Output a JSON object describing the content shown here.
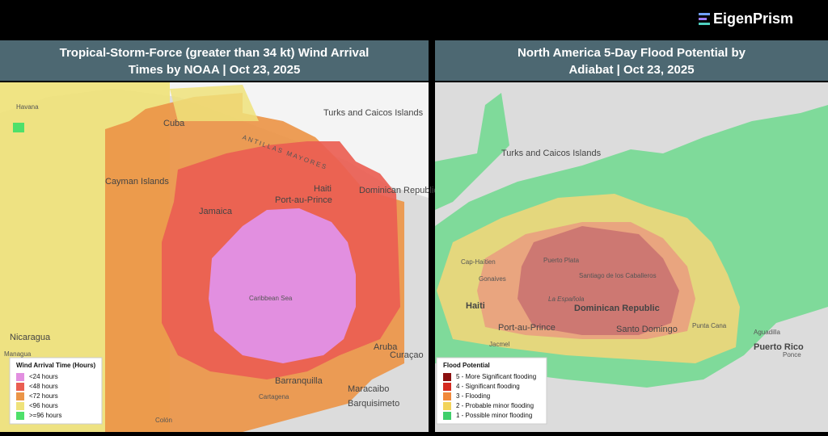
{
  "header": {
    "brand": "EigenPrism"
  },
  "panels": [
    {
      "title_lines": [
        "Tropical-Storm-Force (greater than 34 kt) Wind Arrival",
        "Times by NOAA | Oct 23, 2025"
      ],
      "legend": {
        "title": "Wind Arrival Time (Hours)",
        "items": [
          {
            "label": "<24 hours",
            "color": "#e28fe0"
          },
          {
            "label": "<48 hours",
            "color": "#ea5e52"
          },
          {
            "label": "<72 hours",
            "color": "#eb9548"
          },
          {
            "label": "<96 hours",
            "color": "#efe27a"
          },
          {
            "label": ">=96 hours",
            "color": "#4ee06a"
          }
        ]
      },
      "places": [
        "Havana",
        "Cuba",
        "Cayman Islands",
        "Jamaica",
        "Haiti",
        "Port-au-Prince",
        "Dominican Republic",
        "Turks and Caicos Islands",
        "Caribbean Sea",
        "Nicaragua",
        "Managua",
        "Aruba",
        "Curaçao",
        "Barranquilla",
        "Maracaibo",
        "Barquisimeto",
        "Cartagena",
        "Colón",
        "ANTILLAS MAYORES"
      ]
    },
    {
      "title_lines": [
        "North America 5-Day Flood Potential by",
        "Adiabat | Oct 23, 2025"
      ],
      "legend": {
        "title": "Flood Potential",
        "items": [
          {
            "label": "5 - More Significant flooding",
            "color": "#8b1010"
          },
          {
            "label": "4 - Significant flooding",
            "color": "#d42a20"
          },
          {
            "label": "3 - Flooding",
            "color": "#f0883a"
          },
          {
            "label": "2 - Probable minor flooding",
            "color": "#f2d35a"
          },
          {
            "label": "1 - Possible minor flooding",
            "color": "#3fcf6a"
          }
        ]
      },
      "places": [
        "Turks and Caicos Islands",
        "Cap-Haïtien",
        "Gonaives",
        "Haiti",
        "Port-au-Prince",
        "Jacmel",
        "Puerto Plata",
        "Santiago de los Caballeros",
        "La Española",
        "Dominican Republic",
        "Santo Domingo",
        "Punta Cana",
        "Puerto Rico",
        "Aguadilla",
        "Ponce"
      ]
    }
  ]
}
